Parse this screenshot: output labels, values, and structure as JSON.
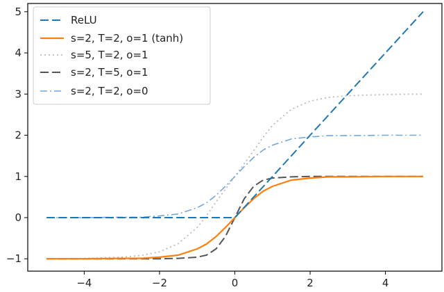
{
  "chart_data": {
    "type": "line",
    "title": "",
    "xlabel": "",
    "ylabel": "",
    "xlim": [
      -5.5,
      5.5
    ],
    "ylim": [
      -1.3,
      5.2
    ],
    "xticks": [
      -4,
      -2,
      0,
      2,
      4
    ],
    "yticks": [
      -1,
      0,
      1,
      2,
      3,
      4,
      5
    ],
    "xtick_labels": [
      "−4",
      "−2",
      "0",
      "2",
      "4"
    ],
    "ytick_labels": [
      "−1",
      "0",
      "1",
      "2",
      "3",
      "4",
      "5"
    ],
    "grid": false,
    "legend_position": "upper-left",
    "series": [
      {
        "name": "ReLU",
        "color": "#1f77b4",
        "dash": "dashed",
        "x": [
          -5,
          -4,
          -3,
          -2,
          -1,
          0,
          1,
          2,
          3,
          4,
          5
        ],
        "y": [
          0,
          0,
          0,
          0,
          0,
          0,
          1,
          2,
          3,
          4,
          5
        ]
      },
      {
        "name": "s=2, T=2, o=1 (tanh)",
        "color": "#ff7f0e",
        "dash": "solid",
        "x": [
          -5,
          -4,
          -3,
          -2.5,
          -2,
          -1.5,
          -1,
          -0.75,
          -0.5,
          -0.25,
          0,
          0.25,
          0.5,
          0.75,
          1,
          1.5,
          2,
          2.5,
          3,
          4,
          5
        ],
        "y": [
          -1.0,
          -1.0,
          -0.99,
          -0.99,
          -0.96,
          -0.91,
          -0.76,
          -0.64,
          -0.46,
          -0.24,
          0.0,
          0.24,
          0.46,
          0.64,
          0.76,
          0.91,
          0.96,
          0.99,
          0.99,
          1.0,
          1.0
        ]
      },
      {
        "name": "s=5, T=2, o=1",
        "color": "#bbbbbb",
        "dash": "dotted",
        "x": [
          -5,
          -4,
          -3,
          -2.5,
          -2,
          -1.5,
          -1,
          -0.75,
          -0.5,
          -0.25,
          0,
          0.25,
          0.5,
          0.75,
          1,
          1.5,
          2,
          2.5,
          3,
          4,
          5
        ],
        "y": [
          -1.0,
          -0.99,
          -0.96,
          -0.92,
          -0.83,
          -0.63,
          -0.24,
          0.05,
          0.38,
          0.69,
          1.0,
          1.31,
          1.62,
          1.95,
          2.24,
          2.63,
          2.83,
          2.92,
          2.96,
          2.99,
          3.0
        ]
      },
      {
        "name": "s=2, T=5, o=1",
        "color": "#555555",
        "dash": "dashed",
        "x": [
          -5,
          -4,
          -3,
          -2,
          -1.5,
          -1,
          -0.75,
          -0.5,
          -0.25,
          0,
          0.25,
          0.5,
          0.75,
          1,
          1.5,
          2,
          3,
          4,
          5
        ],
        "y": [
          -1.0,
          -1.0,
          -1.0,
          -1.0,
          -0.99,
          -0.96,
          -0.91,
          -0.76,
          -0.46,
          0.0,
          0.46,
          0.76,
          0.91,
          0.96,
          0.99,
          1.0,
          1.0,
          1.0,
          1.0
        ]
      },
      {
        "name": "s=2, T=2, o=0",
        "color": "#6fa8dc",
        "dash": "dashdot",
        "x": [
          -5,
          -4,
          -3,
          -2.5,
          -2,
          -1.5,
          -1,
          -0.75,
          -0.5,
          -0.25,
          0,
          0.25,
          0.5,
          0.75,
          1,
          1.5,
          2,
          2.5,
          3,
          4,
          5
        ],
        "y": [
          0.0,
          0.0,
          0.01,
          0.01,
          0.04,
          0.09,
          0.24,
          0.36,
          0.54,
          0.76,
          1.0,
          1.24,
          1.46,
          1.64,
          1.76,
          1.91,
          1.96,
          1.99,
          1.99,
          2.0,
          2.0
        ]
      }
    ]
  }
}
